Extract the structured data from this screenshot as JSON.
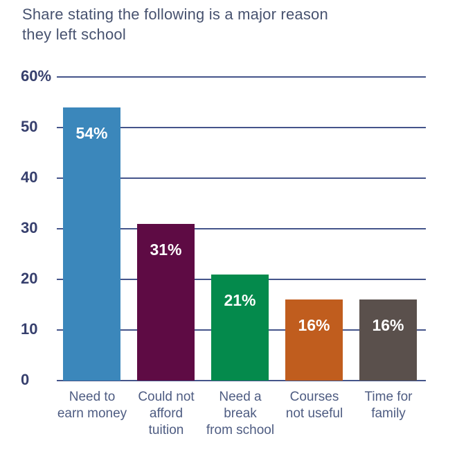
{
  "title": "Share stating the following is a major reason\nthey left school",
  "chart_data": {
    "type": "bar",
    "title": "Share stating the following is a major reason they left school",
    "categories": [
      "Need to earn money",
      "Could not afford tuition",
      "Need a break from school",
      "Courses not useful",
      "Time for family"
    ],
    "category_lines": [
      "Need to\nearn money",
      "Could not\nafford\ntuition",
      "Need a\nbreak\nfrom school",
      "Courses\nnot useful",
      "Time for\nfamily"
    ],
    "values": [
      54,
      31,
      21,
      16,
      16
    ],
    "value_labels": [
      "54%",
      "31%",
      "21%",
      "16%",
      "16%"
    ],
    "bar_colors": [
      "#3b87bb",
      "#5e0b44",
      "#048a4c",
      "#c05d1e",
      "#5a504c"
    ],
    "xlabel": "",
    "ylabel": "",
    "ylim": [
      0,
      60
    ],
    "y_ticks": [
      {
        "value": 0,
        "label": "0"
      },
      {
        "value": 10,
        "label": "10"
      },
      {
        "value": 20,
        "label": "20"
      },
      {
        "value": 30,
        "label": "30"
      },
      {
        "value": 40,
        "label": "40"
      },
      {
        "value": 50,
        "label": "50"
      },
      {
        "value": 60,
        "label": "60%"
      }
    ],
    "grid": true,
    "legend": false,
    "value_label_color": "#ffffff"
  },
  "colors": {
    "background": "#ffffff",
    "title_text": "#47526f",
    "tick_text": "#363f6d",
    "category_text": "#4e5c82",
    "gridline": "#44548a"
  }
}
